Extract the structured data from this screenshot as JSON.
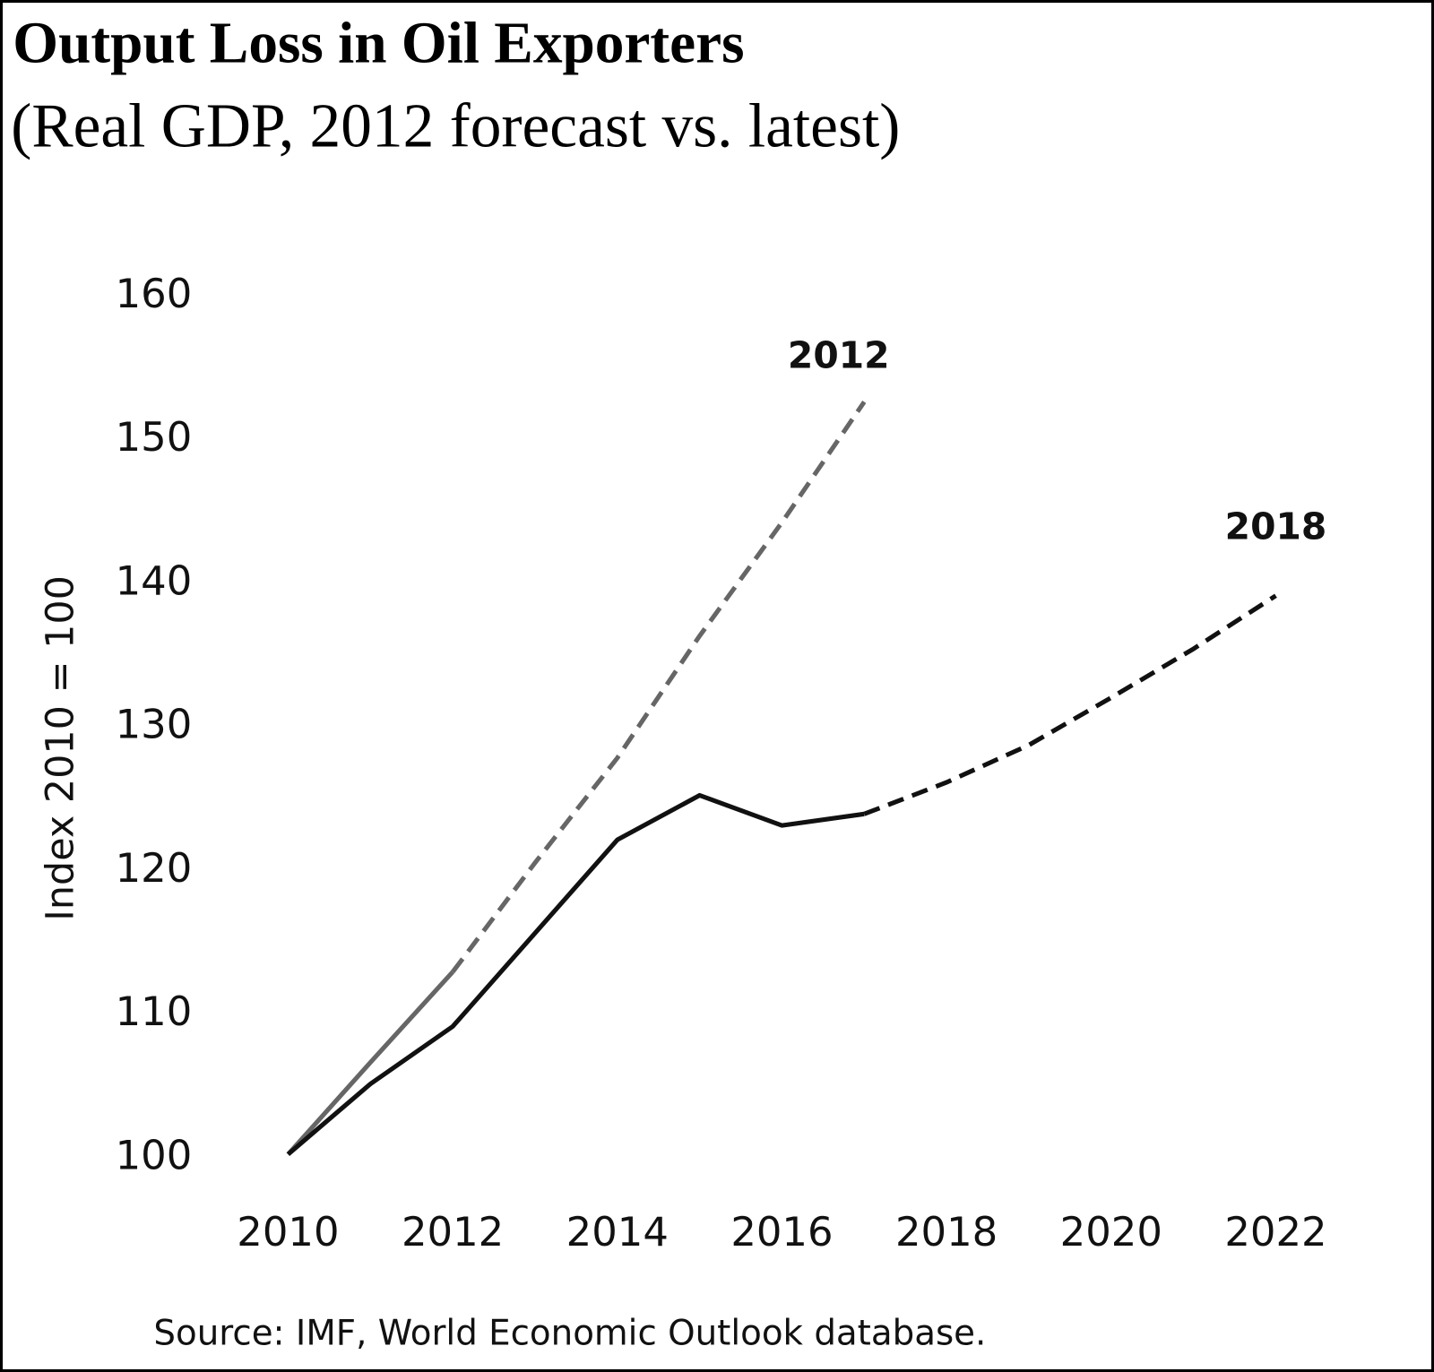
{
  "chart_data": {
    "type": "line",
    "title": "Output Loss in Oil Exporters",
    "subtitle": "(Real GDP, 2012 forecast vs. latest)",
    "ylabel": "Index 2010 = 100",
    "xlabel": "",
    "ylim": [
      100,
      160
    ],
    "xlim": [
      2010,
      2022
    ],
    "yticks": [
      "100",
      "110",
      "120",
      "130",
      "140",
      "150",
      "160"
    ],
    "xticks": [
      "2010",
      "2012",
      "2014",
      "2016",
      "2018",
      "2020",
      "2022"
    ],
    "grid": false,
    "series": [
      {
        "name": "2012",
        "color": "#666666",
        "actual": {
          "x": [
            2010,
            2011,
            2012
          ],
          "y": [
            100,
            106.4,
            112.7
          ]
        },
        "forecast": {
          "x": [
            2012,
            2013,
            2014,
            2015,
            2016,
            2017
          ],
          "y": [
            112.7,
            120.3,
            127.6,
            136.1,
            144.0,
            152.4
          ]
        }
      },
      {
        "name": "2018",
        "color": "#111111",
        "actual": {
          "x": [
            2010,
            2011,
            2012,
            2013,
            2014,
            2015,
            2016,
            2017
          ],
          "y": [
            100,
            104.9,
            108.9,
            115.4,
            121.9,
            125.0,
            122.9,
            123.7
          ]
        },
        "forecast": {
          "x": [
            2017,
            2018,
            2019,
            2020,
            2021,
            2022
          ],
          "y": [
            123.7,
            125.9,
            128.5,
            131.8,
            135.2,
            138.9
          ]
        }
      }
    ],
    "source": "Source: IMF, World Economic Outlook database."
  }
}
